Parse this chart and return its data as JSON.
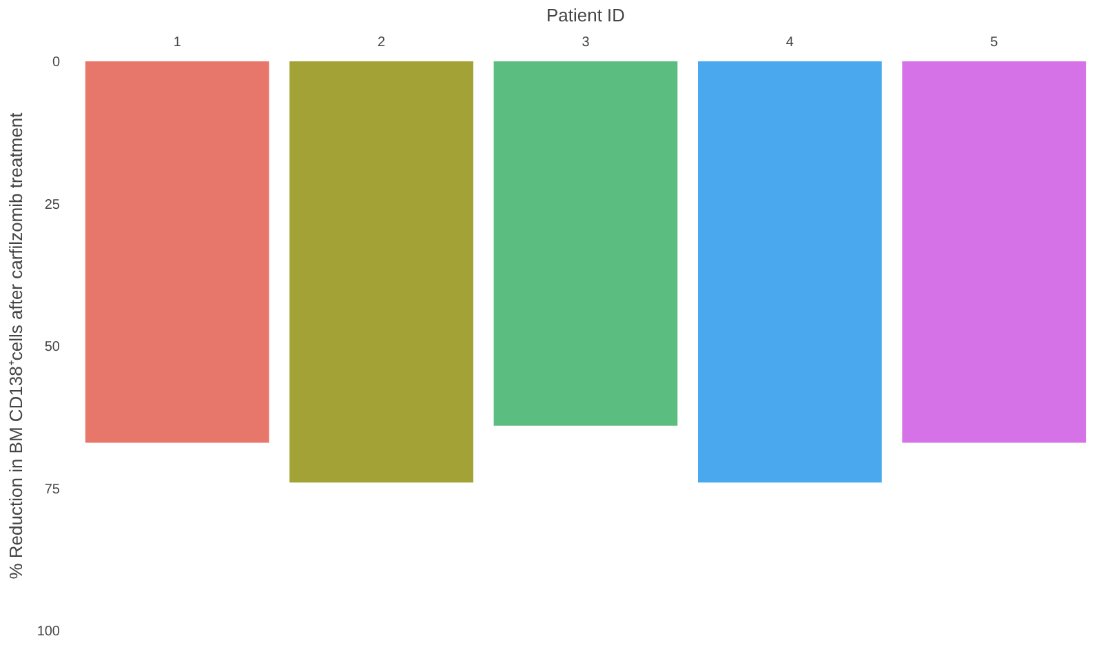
{
  "chart_data": {
    "type": "bar",
    "xlabel": "Patient ID",
    "ylabel": "% Reduction in BM CD138⁺cells after carfilzomib treatment",
    "categories": [
      "1",
      "2",
      "3",
      "4",
      "5"
    ],
    "values": [
      67,
      74,
      64,
      74,
      67
    ],
    "colors": [
      "#e8776b",
      "#a3a236",
      "#5bbd80",
      "#4aa8ee",
      "#d672e8"
    ],
    "ylim": [
      100,
      0
    ],
    "yticks": [
      0,
      25,
      50,
      75,
      100
    ],
    "grid": false
  }
}
